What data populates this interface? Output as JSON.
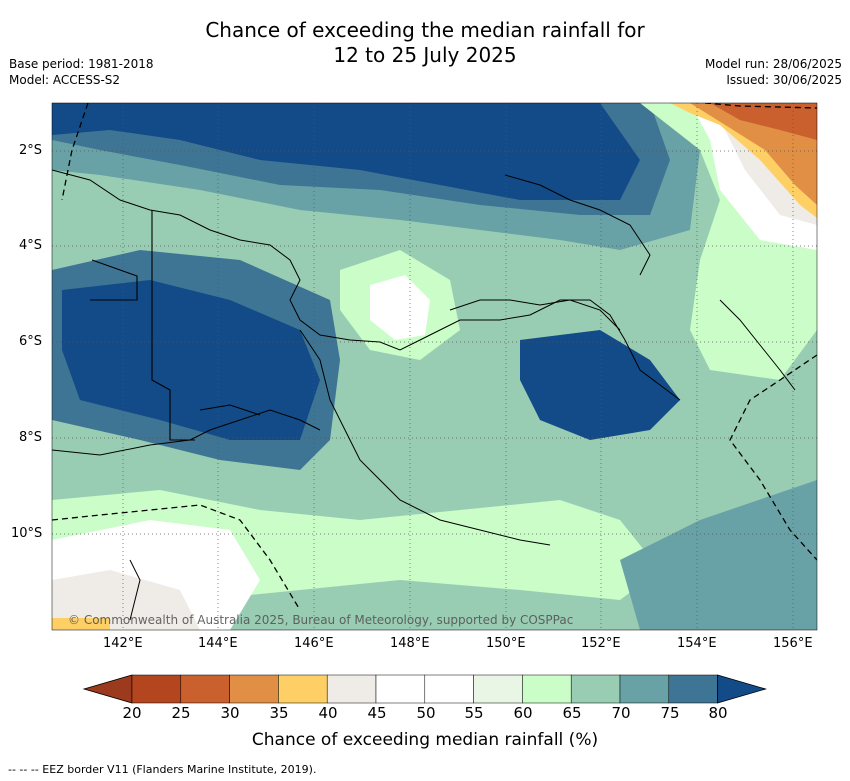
{
  "title_line1": "Chance of exceeding the median rainfall for",
  "title_line2": "12 to 25 July 2025",
  "base_period": "Base period: 1981-2018",
  "model": "Model: ACCESS-S2",
  "model_run": "Model run: 28/06/2025",
  "issued": "Issued: 30/06/2025",
  "copyright": "© Commonwealth of Australia 2025, Bureau of Meteorology, supported by COSPPac",
  "lat_labels": [
    "2°S",
    "4°S",
    "6°S",
    "8°S",
    "10°S"
  ],
  "lon_labels": [
    "142°E",
    "144°E",
    "146°E",
    "148°E",
    "150°E",
    "152°E",
    "154°E",
    "156°E"
  ],
  "colorbar": {
    "ticks": [
      "20",
      "25",
      "30",
      "35",
      "40",
      "45",
      "50",
      "55",
      "60",
      "65",
      "70",
      "75",
      "80"
    ],
    "colors": [
      "#9b3a1d",
      "#b3461f",
      "#c9602d",
      "#e08f45",
      "#fdcf65",
      "#efece7",
      "#ffffff",
      "#ffffff",
      "#e9f6e6",
      "#cbfdc8",
      "#99cdb3",
      "#69a2a6",
      "#3f7594",
      "#124b87"
    ],
    "label": "Chance of exceeding median rainfall (%)"
  },
  "legend_note": "--  --  -- EEZ border V11 (Flanders Marine Institute, 2019)."
}
